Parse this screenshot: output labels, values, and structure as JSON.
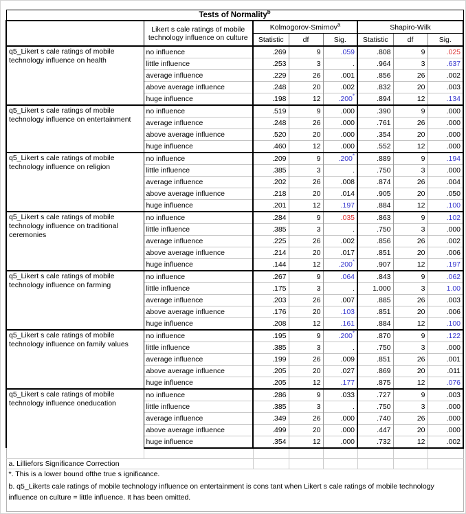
{
  "title": {
    "text": "Tests of Normality",
    "sup": "b"
  },
  "header": {
    "factor_label": "Likert s cale ratings of mobile technology influence on culture",
    "tests": [
      {
        "name": "Kolmogorov-Smirnov",
        "sup": "a"
      },
      {
        "name": "Shapiro-Wilk",
        "sup": ""
      }
    ],
    "stat_columns": [
      "Statistic",
      "df",
      "Sig."
    ]
  },
  "colors": {
    "blue": "#3333cc",
    "red": "#dd3333"
  },
  "groups": [
    {
      "label": "q5_Likert s cale ratings of mobile technology influence on health",
      "rows": [
        {
          "level": "no influence",
          "ks": {
            "stat": ".269",
            "df": "9",
            "sig": ".059",
            "color": "blue",
            "sup": ""
          },
          "sw": {
            "stat": ".808",
            "df": "9",
            "sig": ".025",
            "color": "red",
            "sup": ""
          }
        },
        {
          "level": "little influence",
          "ks": {
            "stat": ".253",
            "df": "3",
            "sig": ".",
            "color": null,
            "sup": ""
          },
          "sw": {
            "stat": ".964",
            "df": "3",
            "sig": ".637",
            "color": "blue",
            "sup": ""
          }
        },
        {
          "level": "average influence",
          "ks": {
            "stat": ".229",
            "df": "26",
            "sig": ".001",
            "color": null,
            "sup": ""
          },
          "sw": {
            "stat": ".856",
            "df": "26",
            "sig": ".002",
            "color": null,
            "sup": ""
          }
        },
        {
          "level": "above average influence",
          "ks": {
            "stat": ".248",
            "df": "20",
            "sig": ".002",
            "color": null,
            "sup": ""
          },
          "sw": {
            "stat": ".832",
            "df": "20",
            "sig": ".003",
            "color": null,
            "sup": ""
          }
        },
        {
          "level": "huge influence",
          "ks": {
            "stat": ".198",
            "df": "12",
            "sig": ".200",
            "color": "blue",
            "sup": "*"
          },
          "sw": {
            "stat": ".894",
            "df": "12",
            "sig": ".134",
            "color": "blue",
            "sup": ""
          }
        }
      ]
    },
    {
      "label": "q5_Likert s cale ratings of mobile technology influence on entertainment",
      "rows": [
        {
          "level": "no influence",
          "ks": {
            "stat": ".519",
            "df": "9",
            "sig": ".000",
            "color": null,
            "sup": ""
          },
          "sw": {
            "stat": ".390",
            "df": "9",
            "sig": ".000",
            "color": null,
            "sup": ""
          }
        },
        {
          "level": "average influence",
          "ks": {
            "stat": ".248",
            "df": "26",
            "sig": ".000",
            "color": null,
            "sup": ""
          },
          "sw": {
            "stat": ".761",
            "df": "26",
            "sig": ".000",
            "color": null,
            "sup": ""
          }
        },
        {
          "level": "above average influence",
          "ks": {
            "stat": ".520",
            "df": "20",
            "sig": ".000",
            "color": null,
            "sup": ""
          },
          "sw": {
            "stat": ".354",
            "df": "20",
            "sig": ".000",
            "color": null,
            "sup": ""
          }
        },
        {
          "level": "huge influence",
          "ks": {
            "stat": ".460",
            "df": "12",
            "sig": ".000",
            "color": null,
            "sup": ""
          },
          "sw": {
            "stat": ".552",
            "df": "12",
            "sig": ".000",
            "color": null,
            "sup": ""
          }
        }
      ]
    },
    {
      "label": "q5_Likert s cale ratings of mobile technology influence on religion",
      "rows": [
        {
          "level": "no influence",
          "ks": {
            "stat": ".209",
            "df": "9",
            "sig": ".200",
            "color": "blue",
            "sup": "*"
          },
          "sw": {
            "stat": ".889",
            "df": "9",
            "sig": ".194",
            "color": "blue",
            "sup": ""
          }
        },
        {
          "level": "little influence",
          "ks": {
            "stat": ".385",
            "df": "3",
            "sig": ".",
            "color": null,
            "sup": ""
          },
          "sw": {
            "stat": ".750",
            "df": "3",
            "sig": ".000",
            "color": null,
            "sup": ""
          }
        },
        {
          "level": "average influence",
          "ks": {
            "stat": ".202",
            "df": "26",
            "sig": ".008",
            "color": null,
            "sup": ""
          },
          "sw": {
            "stat": ".874",
            "df": "26",
            "sig": ".004",
            "color": null,
            "sup": ""
          }
        },
        {
          "level": "above average influence",
          "ks": {
            "stat": ".218",
            "df": "20",
            "sig": ".014",
            "color": null,
            "sup": ""
          },
          "sw": {
            "stat": ".905",
            "df": "20",
            "sig": ".050",
            "color": null,
            "sup": ""
          }
        },
        {
          "level": "huge influence",
          "ks": {
            "stat": ".201",
            "df": "12",
            "sig": ".197",
            "color": "blue",
            "sup": ""
          },
          "sw": {
            "stat": ".884",
            "df": "12",
            "sig": ".100",
            "color": "blue",
            "sup": ""
          }
        }
      ]
    },
    {
      "label": "q5_Likert s cale ratings of mobile technology influence on traditional ceremonies",
      "rows": [
        {
          "level": "no influence",
          "ks": {
            "stat": ".284",
            "df": "9",
            "sig": ".035",
            "color": "red",
            "sup": ""
          },
          "sw": {
            "stat": ".863",
            "df": "9",
            "sig": ".102",
            "color": "blue",
            "sup": ""
          }
        },
        {
          "level": "little influence",
          "ks": {
            "stat": ".385",
            "df": "3",
            "sig": ".",
            "color": null,
            "sup": ""
          },
          "sw": {
            "stat": ".750",
            "df": "3",
            "sig": ".000",
            "color": null,
            "sup": ""
          }
        },
        {
          "level": "average influence",
          "ks": {
            "stat": ".225",
            "df": "26",
            "sig": ".002",
            "color": null,
            "sup": ""
          },
          "sw": {
            "stat": ".856",
            "df": "26",
            "sig": ".002",
            "color": null,
            "sup": ""
          }
        },
        {
          "level": "above average influence",
          "ks": {
            "stat": ".214",
            "df": "20",
            "sig": ".017",
            "color": null,
            "sup": ""
          },
          "sw": {
            "stat": ".851",
            "df": "20",
            "sig": ".006",
            "color": null,
            "sup": ""
          }
        },
        {
          "level": "huge influence",
          "ks": {
            "stat": ".144",
            "df": "12",
            "sig": ".200",
            "color": "blue",
            "sup": "*"
          },
          "sw": {
            "stat": ".907",
            "df": "12",
            "sig": ".197",
            "color": "blue",
            "sup": ""
          }
        }
      ]
    },
    {
      "label": "q5_Likert s cale ratings of mobile technology influence on farming",
      "rows": [
        {
          "level": "no influence",
          "ks": {
            "stat": ".267",
            "df": "9",
            "sig": ".064",
            "color": "blue",
            "sup": ""
          },
          "sw": {
            "stat": ".843",
            "df": "9",
            "sig": ".062",
            "color": "blue",
            "sup": ""
          }
        },
        {
          "level": "little influence",
          "ks": {
            "stat": ".175",
            "df": "3",
            "sig": ".",
            "color": null,
            "sup": ""
          },
          "sw": {
            "stat": "1.000",
            "df": "3",
            "sig": "1.00",
            "color": "blue",
            "sup": ""
          }
        },
        {
          "level": "average influence",
          "ks": {
            "stat": ".203",
            "df": "26",
            "sig": ".007",
            "color": null,
            "sup": ""
          },
          "sw": {
            "stat": ".885",
            "df": "26",
            "sig": ".003",
            "color": null,
            "sup": ""
          }
        },
        {
          "level": "above average influence",
          "ks": {
            "stat": ".176",
            "df": "20",
            "sig": ".103",
            "color": "blue",
            "sup": ""
          },
          "sw": {
            "stat": ".851",
            "df": "20",
            "sig": ".006",
            "color": null,
            "sup": ""
          }
        },
        {
          "level": "huge influence",
          "ks": {
            "stat": ".208",
            "df": "12",
            "sig": ".161",
            "color": "blue",
            "sup": ""
          },
          "sw": {
            "stat": ".884",
            "df": "12",
            "sig": ".100",
            "color": "blue",
            "sup": ""
          }
        }
      ]
    },
    {
      "label": "q5_Likert s cale ratings of mobile technology influence on family values",
      "rows": [
        {
          "level": "no influence",
          "ks": {
            "stat": ".195",
            "df": "9",
            "sig": ".200",
            "color": "blue",
            "sup": "*"
          },
          "sw": {
            "stat": ".870",
            "df": "9",
            "sig": ".122",
            "color": "blue",
            "sup": ""
          }
        },
        {
          "level": "little influence",
          "ks": {
            "stat": ".385",
            "df": "3",
            "sig": ".",
            "color": null,
            "sup": ""
          },
          "sw": {
            "stat": ".750",
            "df": "3",
            "sig": ".000",
            "color": null,
            "sup": ""
          }
        },
        {
          "level": "average influence",
          "ks": {
            "stat": ".199",
            "df": "26",
            "sig": ".009",
            "color": null,
            "sup": ""
          },
          "sw": {
            "stat": ".851",
            "df": "26",
            "sig": ".001",
            "color": null,
            "sup": ""
          }
        },
        {
          "level": "above average influence",
          "ks": {
            "stat": ".205",
            "df": "20",
            "sig": ".027",
            "color": null,
            "sup": ""
          },
          "sw": {
            "stat": ".869",
            "df": "20",
            "sig": ".011",
            "color": null,
            "sup": ""
          }
        },
        {
          "level": "huge influence",
          "ks": {
            "stat": ".205",
            "df": "12",
            "sig": ".177",
            "color": "blue",
            "sup": ""
          },
          "sw": {
            "stat": ".875",
            "df": "12",
            "sig": ".076",
            "color": "blue",
            "sup": ""
          }
        }
      ]
    },
    {
      "label": "q5_Likert s cale ratings of mobile technology influence oneducation",
      "rows": [
        {
          "level": "no influence",
          "ks": {
            "stat": ".286",
            "df": "9",
            "sig": ".033",
            "color": null,
            "sup": ""
          },
          "sw": {
            "stat": ".727",
            "df": "9",
            "sig": ".003",
            "color": null,
            "sup": ""
          }
        },
        {
          "level": "little influence",
          "ks": {
            "stat": ".385",
            "df": "3",
            "sig": ".",
            "color": null,
            "sup": ""
          },
          "sw": {
            "stat": ".750",
            "df": "3",
            "sig": ".000",
            "color": null,
            "sup": ""
          }
        },
        {
          "level": "average influence",
          "ks": {
            "stat": ".349",
            "df": "26",
            "sig": ".000",
            "color": null,
            "sup": ""
          },
          "sw": {
            "stat": ".740",
            "df": "26",
            "sig": ".000",
            "color": null,
            "sup": ""
          }
        },
        {
          "level": "above average influence",
          "ks": {
            "stat": ".499",
            "df": "20",
            "sig": ".000",
            "color": null,
            "sup": ""
          },
          "sw": {
            "stat": ".447",
            "df": "20",
            "sig": ".000",
            "color": null,
            "sup": ""
          }
        },
        {
          "level": "huge influence",
          "ks": {
            "stat": ".354",
            "df": "12",
            "sig": ".000",
            "color": null,
            "sup": ""
          },
          "sw": {
            "stat": ".732",
            "df": "12",
            "sig": ".002",
            "color": null,
            "sup": ""
          }
        }
      ]
    }
  ],
  "footnotes": {
    "a": "a. Lilliefors Significance Correction",
    "star": "*. This is a lower bound ofthe true s ignificance.",
    "b": "b. q5_Likerts cale ratings of mobile technology influence on entertainment is cons tant when Likert s cale ratings of mobile technology influence on culture = little influence. It has been omitted."
  }
}
